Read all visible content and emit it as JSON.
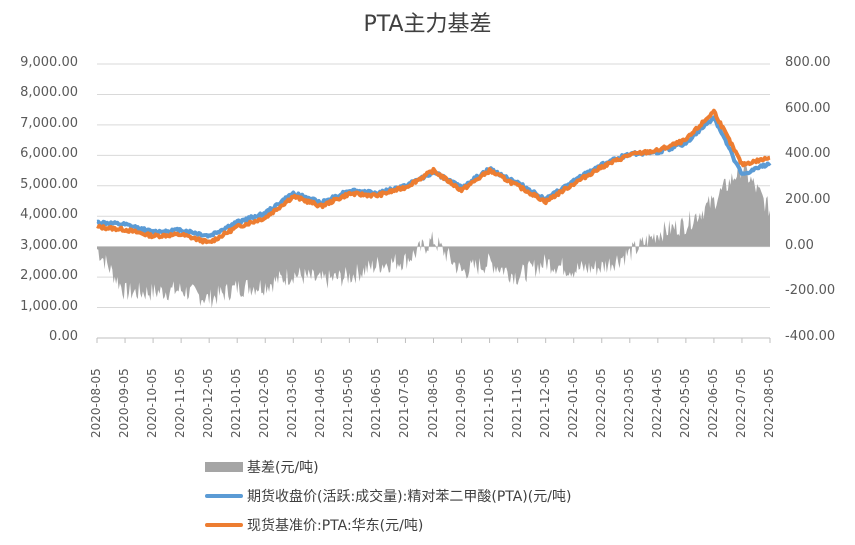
{
  "chart_data": {
    "type": "line+area",
    "title": "PTA主力基差",
    "xlabel": "",
    "ylabel_left": "",
    "ylabel_right": "",
    "left_axis": {
      "ylim": [
        0,
        9000
      ],
      "ticks": [
        "9,000.00",
        "8,000.00",
        "7,000.00",
        "6,000.00",
        "5,000.00",
        "4,000.00",
        "3,000.00",
        "2,000.00",
        "1,000.00",
        "0.00"
      ]
    },
    "right_axis": {
      "ylim": [
        -400,
        800
      ],
      "ticks": [
        "800.00",
        "600.00",
        "400.00",
        "200.00",
        "0.00",
        "-200.00",
        "-400.00"
      ]
    },
    "grid": true,
    "legend_position": "bottom",
    "categories": [
      "2020-08-05",
      "2020-09-05",
      "2020-10-05",
      "2020-11-05",
      "2020-12-05",
      "2021-01-05",
      "2021-02-05",
      "2021-03-05",
      "2021-04-05",
      "2021-05-05",
      "2021-06-05",
      "2021-07-05",
      "2021-08-05",
      "2021-09-05",
      "2021-10-05",
      "2021-11-05",
      "2021-12-05",
      "2022-01-05",
      "2022-02-05",
      "2022-03-05",
      "2022-04-05",
      "2022-05-05",
      "2022-06-05",
      "2022-07-05",
      "2022-08-05"
    ],
    "series": [
      {
        "name": "基差(元/吨)",
        "type": "area",
        "axis": "right",
        "color": "#a5a5a5",
        "values": [
          -10,
          -200,
          -200,
          -190,
          -230,
          -180,
          -170,
          -120,
          -150,
          -130,
          -80,
          -60,
          30,
          -110,
          -70,
          -130,
          -70,
          -100,
          -90,
          -30,
          60,
          100,
          200,
          350,
          160
        ]
      },
      {
        "name": "期货收盘价(活跃:成交量):精对苯二甲酸(PTA)(元/吨)",
        "type": "line",
        "axis": "left",
        "color": "#5b9bd5",
        "values": [
          3800,
          3720,
          3480,
          3550,
          3350,
          3800,
          4100,
          4750,
          4450,
          4850,
          4750,
          5000,
          5450,
          4950,
          5550,
          5100,
          4550,
          5150,
          5700,
          6050,
          6100,
          6400,
          7250,
          5350,
          5750
        ]
      },
      {
        "name": "现货基准价:PTA:华东(元/吨)",
        "type": "line",
        "axis": "left",
        "color": "#ed7d31",
        "values": [
          3650,
          3560,
          3350,
          3400,
          3130,
          3650,
          3950,
          4650,
          4330,
          4740,
          4680,
          4950,
          5500,
          4850,
          5500,
          5000,
          4480,
          5070,
          5620,
          6020,
          6160,
          6500,
          7450,
          5700,
          5920
        ]
      }
    ]
  },
  "legend": [
    {
      "label": "基差(元/吨)",
      "kind": "bar",
      "color": "#a5a5a5"
    },
    {
      "label": "期货收盘价(活跃:成交量):精对苯二甲酸(PTA)(元/吨)",
      "kind": "line",
      "color": "#5b9bd5"
    },
    {
      "label": "现货基准价:PTA:华东(元/吨)",
      "kind": "line",
      "color": "#ed7d31"
    }
  ]
}
